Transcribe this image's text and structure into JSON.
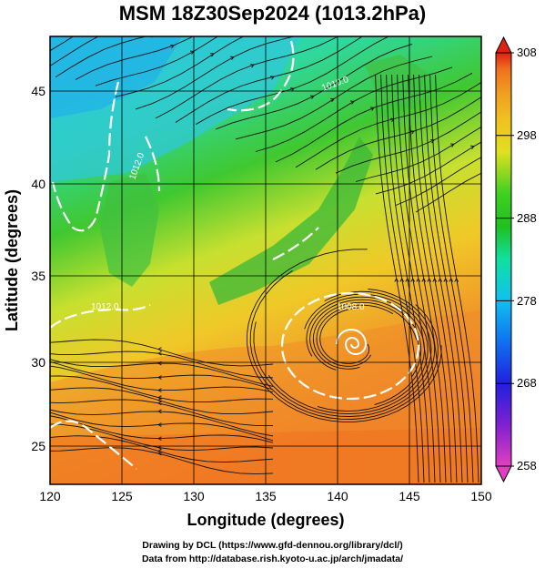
{
  "title": "MSM 18Z30Sep2024 (1013.2hPa)",
  "axes": {
    "xlabel": "Longitude (degrees)",
    "ylabel": "Latitude  (degrees)",
    "x_ticks": [
      "120",
      "125",
      "130",
      "135",
      "140",
      "145",
      "150"
    ],
    "y_ticks": [
      "25",
      "30",
      "35",
      "40",
      "45"
    ],
    "x_range": [
      120,
      150
    ],
    "y_range": [
      22.4,
      47.6
    ]
  },
  "colorbar": {
    "min": 258,
    "max": 308,
    "ticks": [
      "258",
      "268",
      "278",
      "288",
      "298",
      "308"
    ],
    "palette": [
      "#e040c0",
      "#8020d0",
      "#2020e0",
      "#1070f0",
      "#10c0f0",
      "#10e0a0",
      "#20c020",
      "#40d020",
      "#e0e020",
      "#f0c020",
      "#f0a020",
      "#f07020",
      "#e02010"
    ]
  },
  "contours": [
    {
      "label": "1008.0"
    },
    {
      "label": "1012.0"
    },
    {
      "label": "1010.0"
    },
    {
      "label": "1012.0"
    }
  ],
  "credits": {
    "line1": "Drawing by DCL (https://www.gfd-dennou.org/library/dcl/)",
    "line2": "Data from http://database.rish.kyoto-u.ac.jp/arch/jmadata/"
  }
}
